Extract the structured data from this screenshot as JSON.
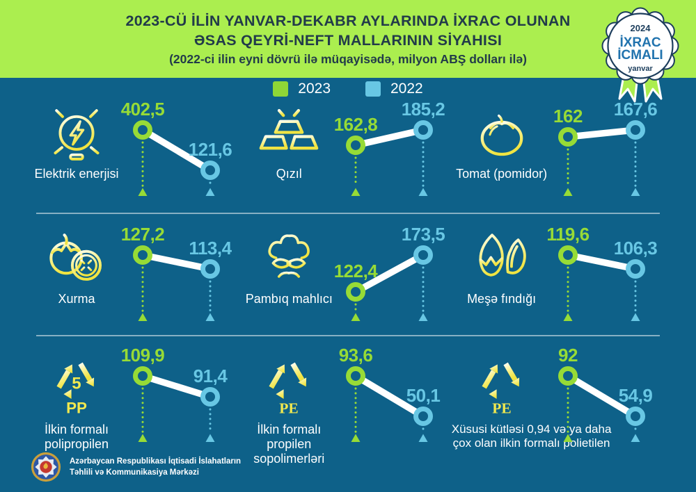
{
  "header": {
    "title_line1": "2023-CÜ İLİN YANVAR-DEKABR AYLARINDA İXRAC OLUNAN",
    "title_line2": "ƏSAS QEYRİ-NEFT MALLARININ SİYAHISI",
    "subtitle": "(2022-ci ilin eyni dövrü ilə müqayisədə, milyon ABŞ dolları ilə)"
  },
  "badge": {
    "year": "2024",
    "title_line1": "İXRAC",
    "title_line2": "İCMALI",
    "month": "yanvar"
  },
  "legend": {
    "y2023": {
      "label": "2023",
      "color": "#8FD636"
    },
    "y2022": {
      "label": "2022",
      "color": "#68C7E4"
    }
  },
  "colors": {
    "background": "#0E6189",
    "header_green": "#ABEE4F",
    "accent_2023": "#97DB36",
    "accent_2022": "#68C7E4",
    "icon_yellow": "#F2E94E",
    "title_text": "#223B4A",
    "badge_navy": "#1C3D5C",
    "badge_blue": "#2173AE",
    "connector_line": "#FFFFFF"
  },
  "chart_data": {
    "type": "slope",
    "title": "2023-cü ilin yanvar-dekabr aylarında ixrac olunan əsas qeyri-neft mallarının siyahısı",
    "subtitle": "2022-ci ilin eyni dövrü ilə müqayisədə",
    "unit": "milyon ABŞ dolları",
    "series_labels": [
      "2023",
      "2022"
    ],
    "items": [
      {
        "label": "Elektrik enerjisi",
        "icon": "light-bulb-icon",
        "v2023": 402.5,
        "v2022": 121.6,
        "d2023": "402,5",
        "d2022": "121,6"
      },
      {
        "label": "Qızıl",
        "icon": "gold-bars-icon",
        "v2023": 162.8,
        "v2022": 185.2,
        "d2023": "162,8",
        "d2022": "185,2"
      },
      {
        "label": "Tomat (pomidor)",
        "icon": "tomato-icon",
        "v2023": 162,
        "v2022": 167.6,
        "d2023": "162",
        "d2022": "167,6"
      },
      {
        "label": "Xurma",
        "icon": "persimmon-icon",
        "v2023": 127.2,
        "v2022": 113.4,
        "d2023": "127,2",
        "d2022": "113,4"
      },
      {
        "label": "Pambıq mahlıcı",
        "icon": "cotton-icon",
        "v2023": 122.4,
        "v2022": 173.5,
        "d2023": "122,4",
        "d2022": "173,5"
      },
      {
        "label": "Meşə fındığı",
        "icon": "hazelnut-icon",
        "v2023": 119.6,
        "v2022": 106.3,
        "d2023": "119,6",
        "d2022": "106,3"
      },
      {
        "label": "İlkin formalı polipropilen",
        "icon": "recycle-pp-icon",
        "icon_inside": "5",
        "icon_below": "PP",
        "v2023": 109.9,
        "v2022": 91.4,
        "d2023": "109,9",
        "d2022": "91,4"
      },
      {
        "label": "İlkin formalı propilen sopolimerləri",
        "icon": "recycle-pe-icon",
        "icon_below": "PE",
        "v2023": 93.6,
        "v2022": 50.1,
        "d2023": "93,6",
        "d2022": "50,1"
      },
      {
        "label": "Xüsusi kütləsi 0,94 və ya daha çox olan ilkin formalı polietilen",
        "icon": "recycle-pe-icon",
        "icon_below": "PE",
        "label_wide": true,
        "v2023": 92,
        "v2022": 54.9,
        "d2023": "92",
        "d2022": "54,9"
      }
    ]
  },
  "footer": {
    "org_line1": "Azərbaycan Respublikası İqtisadi İslahatların",
    "org_line2": "Təhlili və Kommunikasiya Mərkəzi"
  }
}
